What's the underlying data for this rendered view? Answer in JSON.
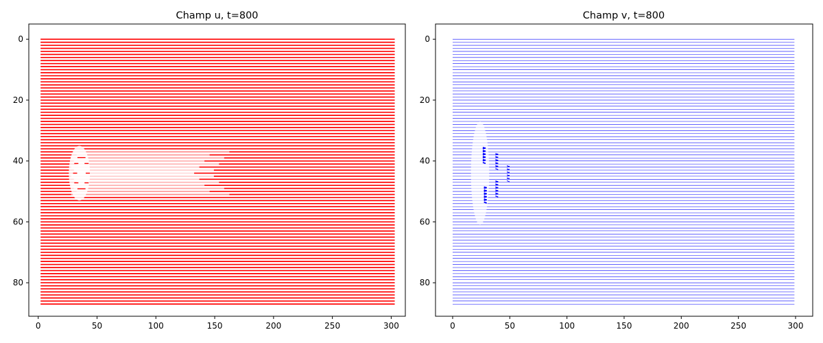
{
  "chart_data": [
    {
      "type": "quiver",
      "title": "Champ u, t=800",
      "color": "#ff0000",
      "xlabel": "",
      "ylabel": "",
      "xlim": [
        -8,
        312
      ],
      "ylim": [
        91,
        -5
      ],
      "y_inverted": true,
      "grid": false,
      "xticks": [
        0,
        50,
        100,
        150,
        200,
        250,
        300
      ],
      "yticks": [
        0,
        20,
        40,
        60,
        80
      ],
      "x_range": [
        2,
        303
      ],
      "y_range": [
        0,
        87
      ],
      "row_step": 1,
      "wake": {
        "x_start": 28,
        "x_end": 150,
        "y_center": 44,
        "y_half_width": 7
      },
      "obstacle": {
        "x": 35,
        "y": 44,
        "radius": 9
      }
    },
    {
      "type": "quiver",
      "title": "Champ v, t=800",
      "color": "#0000ff",
      "xlabel": "",
      "ylabel": "",
      "xlim": [
        -15,
        315
      ],
      "ylim": [
        91,
        -5
      ],
      "y_inverted": true,
      "grid": false,
      "xticks": [
        0,
        50,
        100,
        150,
        200,
        250,
        300
      ],
      "yticks": [
        0,
        20,
        40,
        60,
        80
      ],
      "x_range": [
        0,
        299
      ],
      "y_range": [
        0,
        87
      ],
      "row_step": 1,
      "hotspots": [
        {
          "x": 27,
          "y": 38,
          "strength": 1.0
        },
        {
          "x": 28,
          "y": 51,
          "strength": 1.0
        },
        {
          "x": 38,
          "y": 40,
          "strength": 0.7
        },
        {
          "x": 38,
          "y": 49,
          "strength": 0.7
        },
        {
          "x": 48,
          "y": 44,
          "strength": 0.5
        }
      ],
      "clear_region": {
        "x": 24,
        "y": 44,
        "rx": 8,
        "ry": 17
      }
    }
  ]
}
